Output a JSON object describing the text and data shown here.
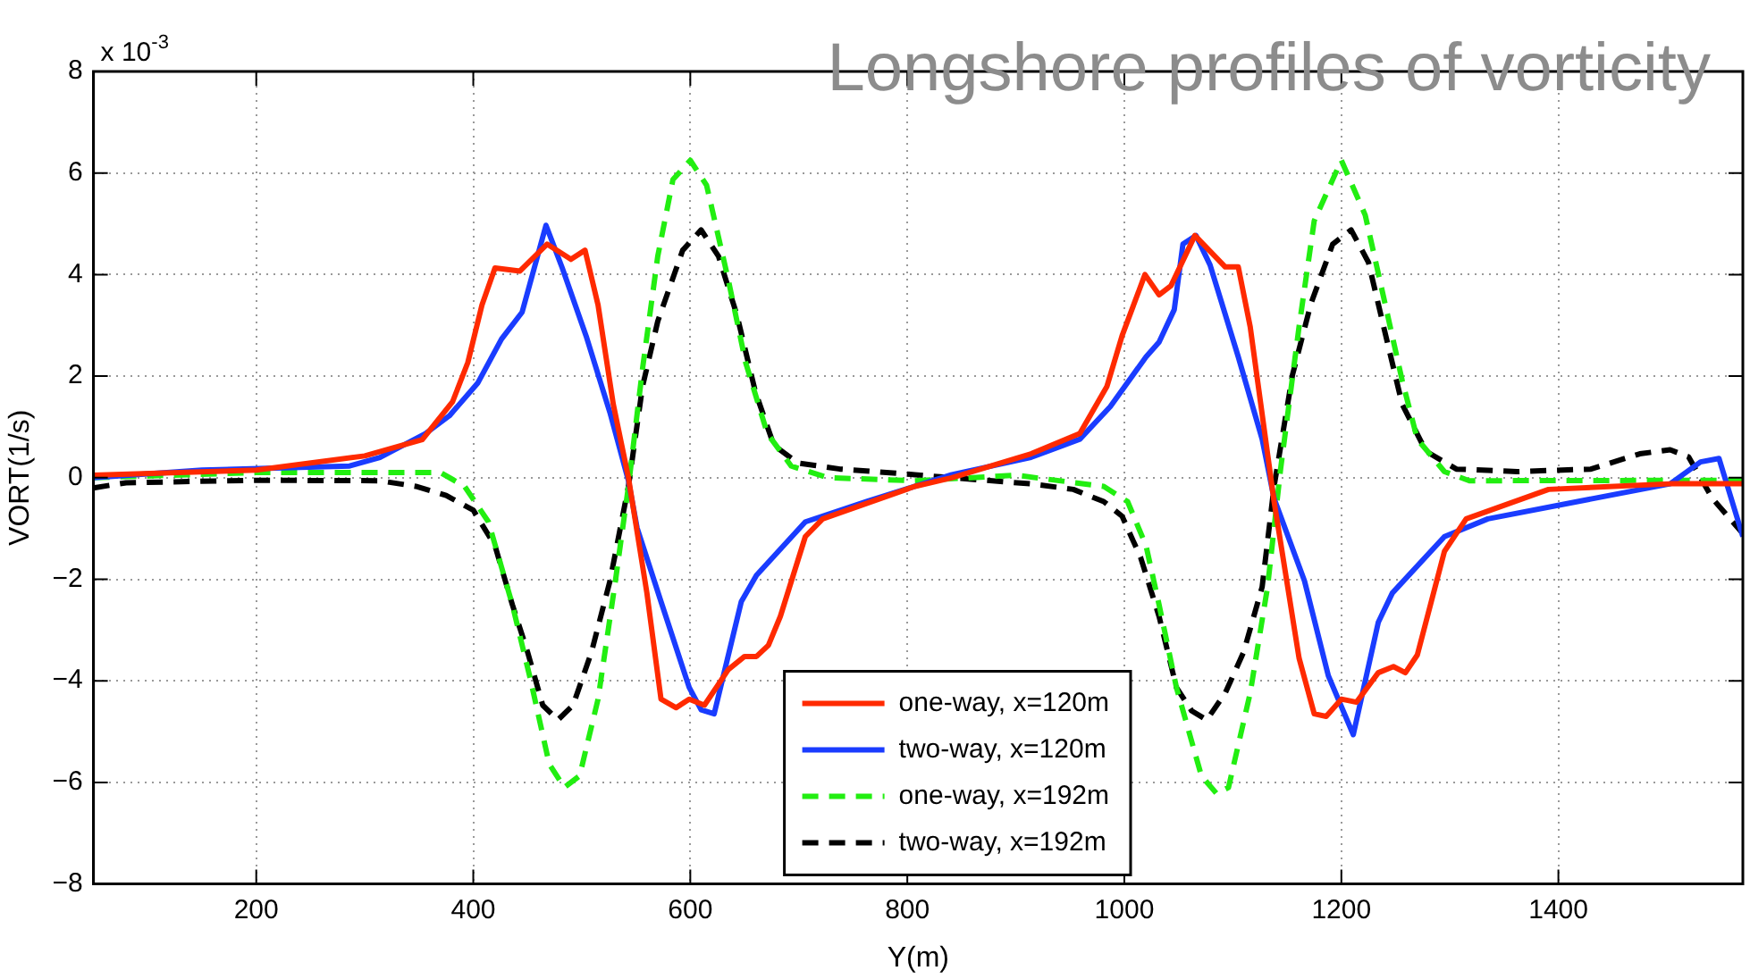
{
  "chart_data": {
    "type": "line",
    "title": "Longshore profiles of vorticity",
    "xlabel": "Y(m)",
    "ylabel": "VORT(1/s)",
    "annotations": [
      "x 10$^{-3}$"
    ],
    "xlim": [
      50,
      1570
    ],
    "xticks": [
      200,
      400,
      600,
      800,
      1000,
      1200,
      1400
    ],
    "ylim": [
      -8,
      8
    ],
    "yticks": [
      -8,
      -6,
      -4,
      -2,
      0,
      2,
      4,
      6,
      8
    ],
    "grid": true,
    "legend": "bottom",
    "marker": "none",
    "series": [
      {
        "name": "one-way, x=120m",
        "color": "#ff2a00",
        "line_style": "solid",
        "x": [
          50,
          200,
          300,
          353,
          381,
          395,
          408,
          420,
          443,
          468,
          490,
          503,
          515,
          529,
          543,
          560,
          573,
          587,
          599,
          613,
          635,
          650,
          661,
          672,
          683,
          706,
          722,
          807,
          841,
          914,
          959,
          984,
          998,
          1019,
          1032,
          1043,
          1065,
          1093,
          1105,
          1116,
          1138,
          1161,
          1175,
          1186,
          1200,
          1214,
          1234,
          1248,
          1259,
          1270,
          1295,
          1315,
          1391,
          1503,
          1570
        ],
        "values": [
          0.05,
          0.15,
          0.43,
          0.75,
          1.5,
          2.27,
          3.4,
          4.13,
          4.07,
          4.6,
          4.3,
          4.48,
          3.4,
          1.45,
          0,
          -2.27,
          -4.36,
          -4.53,
          -4.36,
          -4.48,
          -3.78,
          -3.52,
          -3.52,
          -3.3,
          -2.73,
          -1.16,
          -0.81,
          -0.17,
          0,
          0.47,
          0.87,
          1.8,
          2.8,
          4.0,
          3.6,
          3.78,
          4.77,
          4.15,
          4.15,
          2.97,
          -0.47,
          -3.55,
          -4.65,
          -4.7,
          -4.36,
          -4.42,
          -3.84,
          -3.72,
          -3.84,
          -3.49,
          -1.45,
          -0.81,
          -0.23,
          -0.12,
          -0.12
        ]
      },
      {
        "name": "two-way, x=120m",
        "color": "#1a3cff",
        "line_style": "solid",
        "x": [
          50,
          150,
          286,
          314,
          356,
          378,
          404,
          426,
          445,
          467,
          482,
          504,
          526,
          543,
          551,
          573,
          599,
          610,
          622,
          647,
          661,
          706,
          762,
          807,
          841,
          914,
          959,
          987,
          1020,
          1032,
          1046,
          1054,
          1066,
          1079,
          1105,
          1127,
          1138,
          1166,
          1188,
          1211,
          1234,
          1247,
          1295,
          1335,
          1503,
          1531,
          1548,
          1570
        ],
        "values": [
          0,
          0.15,
          0.23,
          0.4,
          0.87,
          1.22,
          1.86,
          2.73,
          3.26,
          4.97,
          4.13,
          2.79,
          1.28,
          -0.06,
          -0.99,
          -2.44,
          -4.13,
          -4.57,
          -4.65,
          -2.44,
          -1.92,
          -0.87,
          -0.47,
          -0.17,
          0.06,
          0.4,
          0.76,
          1.4,
          2.38,
          2.67,
          3.31,
          4.6,
          4.77,
          4.19,
          2.38,
          0.76,
          -0.41,
          -2.03,
          -3.9,
          -5.06,
          -2.85,
          -2.27,
          -1.16,
          -0.81,
          -0.12,
          0.31,
          0.38,
          -1.16
        ]
      },
      {
        "name": "one-way, x=192m",
        "color": "#22ee11",
        "line_style": "dashed",
        "x": [
          50,
          200,
          370,
          392,
          414,
          436,
          453,
          470,
          484,
          498,
          515,
          531,
          543,
          556,
          570,
          584,
          600,
          615,
          635,
          651,
          671,
          693,
          727,
          807,
          900,
          981,
          1003,
          1020,
          1032,
          1048,
          1071,
          1085,
          1096,
          1116,
          1132,
          1144,
          1161,
          1175,
          1200,
          1222,
          1239,
          1256,
          1270,
          1295,
          1318,
          1570
        ],
        "values": [
          0,
          0.1,
          0.1,
          -0.17,
          -0.87,
          -2.5,
          -4.0,
          -5.64,
          -6.1,
          -5.87,
          -4.36,
          -2.03,
          -0.17,
          2.15,
          4.36,
          5.87,
          6.25,
          5.76,
          3.9,
          2.27,
          0.87,
          0.23,
          0,
          -0.06,
          0.05,
          -0.17,
          -0.47,
          -1.34,
          -2.5,
          -4.13,
          -5.87,
          -6.22,
          -6.1,
          -4.24,
          -2.15,
          0.17,
          2.97,
          5.06,
          6.25,
          5.17,
          3.55,
          1.92,
          0.76,
          0.12,
          -0.06,
          -0.05
        ]
      },
      {
        "name": "two-way, x=192m",
        "color": "#000000",
        "line_style": "dashed",
        "x": [
          50,
          80,
          200,
          314,
          347,
          375,
          400,
          420,
          436,
          450,
          464,
          478,
          492,
          509,
          526,
          543,
          556,
          570,
          593,
          610,
          626,
          643,
          660,
          677,
          699,
          738,
          807,
          841,
          914,
          953,
          981,
          998,
          1015,
          1032,
          1048,
          1062,
          1076,
          1093,
          1110,
          1127,
          1138,
          1155,
          1172,
          1192,
          1209,
          1225,
          1239,
          1256,
          1278,
          1306,
          1362,
          1430,
          1475,
          1503,
          1520,
          1542,
          1570
        ],
        "values": [
          -0.2,
          -0.1,
          -0.05,
          -0.06,
          -0.17,
          -0.35,
          -0.64,
          -1.34,
          -2.5,
          -3.43,
          -4.48,
          -4.77,
          -4.48,
          -3.43,
          -2.03,
          -0.17,
          1.8,
          3.08,
          4.48,
          4.88,
          4.36,
          3.2,
          1.69,
          0.64,
          0.29,
          0.17,
          0.06,
          0,
          -0.12,
          -0.23,
          -0.47,
          -0.76,
          -1.57,
          -2.73,
          -4.13,
          -4.59,
          -4.77,
          -4.24,
          -3.43,
          -2.15,
          -0.17,
          2.03,
          3.43,
          4.6,
          4.88,
          4.24,
          2.97,
          1.45,
          0.52,
          0.17,
          0.12,
          0.17,
          0.47,
          0.55,
          0.41,
          -0.41,
          -1.1
        ]
      }
    ]
  }
}
